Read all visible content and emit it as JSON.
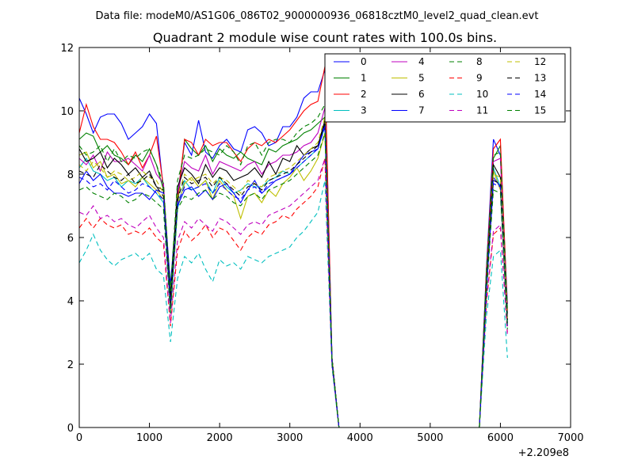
{
  "figure": {
    "suptitle": "Data file: modeM0/AS1G06_086T02_9000000936_06818cztM0_level2_quad_clean.evt"
  },
  "chart_data": {
    "type": "line",
    "title": "Quadrant 2 module wise count rates with 100.0s bins.",
    "xlabel": "",
    "ylabel": "",
    "xlim": [
      0,
      7000
    ],
    "ylim": [
      0,
      12
    ],
    "x_offset_label": "+2.209e8",
    "xticks": [
      0,
      1000,
      2000,
      3000,
      4000,
      5000,
      6000,
      7000
    ],
    "yticks": [
      0,
      2,
      4,
      6,
      8,
      10,
      12
    ],
    "grid": false,
    "legend_position": "top-right",
    "legend_columns": 4,
    "x": [
      0,
      100,
      200,
      300,
      400,
      500,
      600,
      700,
      800,
      900,
      1000,
      1100,
      1200,
      1300,
      1400,
      1500,
      1600,
      1700,
      1800,
      1900,
      2000,
      2100,
      2200,
      2300,
      2400,
      2500,
      2600,
      2700,
      2800,
      2900,
      3000,
      3100,
      3200,
      3300,
      3400,
      3500,
      3600,
      3700,
      3800,
      5700,
      5800,
      5900,
      6000,
      6100
    ],
    "series": [
      {
        "name": "0",
        "color": "#0000ff",
        "dash": "solid",
        "values": [
          10.4,
          9.9,
          9.3,
          9.8,
          9.9,
          9.9,
          9.6,
          9.1,
          9.3,
          9.5,
          9.9,
          9.6,
          7.5,
          4.5,
          7.3,
          9.0,
          8.6,
          9.7,
          8.7,
          8.5,
          8.9,
          9.1,
          8.8,
          8.7,
          9.4,
          9.5,
          9.3,
          8.9,
          9.0,
          9.5,
          9.5,
          9.8,
          10.4,
          10.6,
          10.6,
          11.3,
          2.2,
          0,
          0,
          0,
          5.0,
          9.1,
          8.6,
          3.9
        ]
      },
      {
        "name": "1",
        "color": "#008000",
        "dash": "solid",
        "values": [
          9.1,
          9.3,
          9.2,
          8.7,
          8.9,
          8.6,
          8.5,
          8.3,
          8.6,
          8.4,
          8.8,
          8.3,
          7.5,
          4.2,
          7.0,
          9.1,
          8.8,
          8.6,
          8.9,
          8.4,
          8.8,
          8.6,
          8.5,
          8.7,
          8.5,
          8.4,
          8.3,
          8.8,
          8.7,
          8.9,
          9.0,
          9.1,
          9.3,
          9.4,
          9.6,
          9.8,
          2.2,
          0,
          0,
          0,
          4.8,
          8.5,
          8.9,
          3.6
        ]
      },
      {
        "name": "2",
        "color": "#ff0000",
        "dash": "solid",
        "values": [
          9.3,
          10.2,
          9.5,
          9.1,
          9.1,
          9.0,
          8.7,
          8.3,
          8.7,
          8.2,
          8.6,
          9.2,
          7.6,
          3.9,
          7.2,
          9.1,
          9.0,
          8.6,
          9.1,
          8.9,
          9.0,
          9.0,
          8.7,
          8.4,
          8.8,
          9.0,
          8.9,
          9.1,
          9.0,
          9.2,
          9.4,
          9.7,
          10.0,
          10.2,
          10.3,
          11.4,
          2.2,
          0,
          0,
          0,
          4.9,
          8.8,
          9.1,
          3.7
        ]
      },
      {
        "name": "3",
        "color": "#00bfbf",
        "dash": "solid",
        "values": [
          8.2,
          8.5,
          8.1,
          8.0,
          7.8,
          7.9,
          7.6,
          7.8,
          7.7,
          7.9,
          7.6,
          7.4,
          7.1,
          3.6,
          6.9,
          7.8,
          7.5,
          7.6,
          7.8,
          7.4,
          7.9,
          7.6,
          7.4,
          7.5,
          7.7,
          7.6,
          7.6,
          7.8,
          7.9,
          8.1,
          8.0,
          8.2,
          8.4,
          8.6,
          8.8,
          9.5,
          2.1,
          0,
          0,
          0,
          4.4,
          8.2,
          7.6,
          3.4
        ]
      },
      {
        "name": "4",
        "color": "#bf00bf",
        "dash": "solid",
        "values": [
          8.5,
          8.3,
          8.6,
          8.1,
          8.7,
          8.4,
          8.4,
          8.5,
          8.3,
          8.1,
          8.6,
          8.0,
          7.7,
          4.0,
          7.4,
          8.4,
          8.2,
          8.1,
          8.6,
          8.0,
          8.4,
          8.3,
          8.2,
          8.1,
          8.3,
          8.4,
          8.0,
          8.3,
          8.4,
          8.6,
          8.6,
          8.7,
          8.9,
          9.0,
          9.3,
          10.1,
          2.2,
          0,
          0,
          0,
          4.7,
          8.4,
          8.5,
          3.5
        ]
      },
      {
        "name": "5",
        "color": "#bfbf00",
        "dash": "solid",
        "values": [
          8.6,
          8.7,
          8.2,
          8.4,
          7.9,
          8.0,
          7.7,
          7.8,
          7.6,
          7.9,
          7.7,
          7.5,
          7.2,
          3.7,
          7.0,
          7.7,
          7.9,
          7.6,
          7.8,
          7.2,
          7.8,
          7.5,
          7.3,
          6.6,
          7.3,
          7.4,
          7.1,
          7.5,
          7.3,
          7.7,
          7.9,
          8.2,
          7.8,
          8.1,
          8.5,
          9.3,
          2.1,
          0,
          0,
          0,
          4.4,
          8.1,
          7.5,
          3.3
        ]
      },
      {
        "name": "6",
        "color": "#000000",
        "dash": "solid",
        "values": [
          8.8,
          8.4,
          8.5,
          8.7,
          8.2,
          8.5,
          8.3,
          8.0,
          8.2,
          7.9,
          8.1,
          7.6,
          7.5,
          4.1,
          7.6,
          8.2,
          8.0,
          7.7,
          8.3,
          7.9,
          8.2,
          8.1,
          7.8,
          7.9,
          8.0,
          8.2,
          7.9,
          8.4,
          8.0,
          8.5,
          8.4,
          8.9,
          8.6,
          8.8,
          8.9,
          9.7,
          2.2,
          0,
          0,
          0,
          4.6,
          8.3,
          7.9,
          3.4
        ]
      },
      {
        "name": "7",
        "color": "#0000ff",
        "dash": "solid",
        "values": [
          7.7,
          8.1,
          7.8,
          8.0,
          7.6,
          7.4,
          7.4,
          7.3,
          7.4,
          7.4,
          7.2,
          7.5,
          7.4,
          3.8,
          7.0,
          7.5,
          7.6,
          7.3,
          7.5,
          7.2,
          7.6,
          7.7,
          7.4,
          7.1,
          7.5,
          7.8,
          7.4,
          7.6,
          7.8,
          7.9,
          8.0,
          8.3,
          8.6,
          8.7,
          8.8,
          9.6,
          2.1,
          0,
          0,
          0,
          4.3,
          7.9,
          7.6,
          3.2
        ]
      },
      {
        "name": "8",
        "color": "#008000",
        "dash": "dashed",
        "values": [
          8.9,
          8.6,
          8.7,
          8.9,
          8.4,
          8.8,
          8.4,
          8.6,
          8.5,
          8.7,
          8.8,
          8.3,
          7.7,
          4.3,
          7.8,
          8.6,
          8.5,
          8.6,
          8.8,
          8.7,
          8.6,
          8.9,
          8.7,
          8.3,
          8.9,
          9.0,
          8.6,
          9.0,
          9.1,
          9.1,
          9.0,
          9.3,
          9.5,
          9.6,
          9.8,
          10.2,
          2.2,
          0,
          0,
          0,
          4.9,
          8.6,
          8.7,
          3.7
        ]
      },
      {
        "name": "9",
        "color": "#ff0000",
        "dash": "dashed",
        "values": [
          6.3,
          6.6,
          6.3,
          6.6,
          6.4,
          6.3,
          6.4,
          6.1,
          6.2,
          6.1,
          6.3,
          6.0,
          5.8,
          3.2,
          5.6,
          6.2,
          5.9,
          6.1,
          6.4,
          6.0,
          6.3,
          6.2,
          5.9,
          5.6,
          6.0,
          6.2,
          6.1,
          6.4,
          6.5,
          6.7,
          6.6,
          6.9,
          7.1,
          7.3,
          7.6,
          8.5,
          2.0,
          0,
          0,
          0,
          3.9,
          6.1,
          6.3,
          3.0
        ]
      },
      {
        "name": "10",
        "color": "#00bfbf",
        "dash": "dashed",
        "values": [
          5.2,
          5.6,
          6.1,
          5.6,
          5.3,
          5.1,
          5.3,
          5.4,
          5.5,
          5.3,
          5.5,
          5.0,
          4.8,
          2.7,
          4.7,
          5.4,
          5.2,
          5.5,
          5.0,
          4.6,
          5.3,
          5.1,
          5.2,
          5.0,
          5.4,
          5.3,
          5.2,
          5.4,
          5.5,
          5.6,
          5.7,
          6.0,
          6.2,
          6.5,
          6.8,
          7.8,
          1.9,
          0,
          0,
          0,
          3.5,
          5.4,
          5.6,
          2.2
        ]
      },
      {
        "name": "11",
        "color": "#bf00bf",
        "dash": "dashed",
        "values": [
          6.8,
          6.7,
          7.0,
          6.6,
          6.7,
          6.5,
          6.6,
          6.4,
          6.3,
          6.5,
          6.7,
          6.3,
          6.0,
          3.3,
          5.9,
          6.5,
          6.3,
          6.6,
          6.4,
          6.2,
          6.6,
          6.5,
          6.3,
          6.1,
          6.4,
          6.5,
          6.4,
          6.7,
          6.8,
          6.9,
          7.0,
          7.2,
          7.4,
          7.6,
          7.8,
          8.5,
          2.0,
          0,
          0,
          0,
          4.0,
          6.2,
          6.4,
          2.9
        ]
      },
      {
        "name": "12",
        "color": "#bfbf00",
        "dash": "dashed",
        "values": [
          8.3,
          8.1,
          8.4,
          8.2,
          7.9,
          8.1,
          8.0,
          7.8,
          7.9,
          8.1,
          7.9,
          7.8,
          7.4,
          3.8,
          7.3,
          8.0,
          7.8,
          7.9,
          8.0,
          7.7,
          7.9,
          7.8,
          7.6,
          7.4,
          7.8,
          7.7,
          7.6,
          7.9,
          8.0,
          8.1,
          8.2,
          8.4,
          8.6,
          8.8,
          9.0,
          9.8,
          2.2,
          0,
          0,
          0,
          4.5,
          8.0,
          7.9,
          3.4
        ]
      },
      {
        "name": "13",
        "color": "#000000",
        "dash": "dashed",
        "values": [
          8.1,
          8.0,
          7.9,
          8.3,
          8.1,
          7.9,
          7.8,
          8.0,
          7.7,
          7.8,
          8.0,
          7.6,
          7.3,
          3.9,
          7.2,
          7.9,
          7.7,
          7.8,
          7.9,
          7.6,
          7.9,
          7.7,
          7.5,
          7.3,
          7.6,
          7.7,
          7.5,
          7.8,
          7.9,
          8.0,
          8.1,
          8.3,
          8.5,
          8.7,
          8.9,
          9.6,
          2.1,
          0,
          0,
          0,
          4.4,
          7.8,
          7.7,
          3.3
        ]
      },
      {
        "name": "14",
        "color": "#0000ff",
        "dash": "dashed",
        "values": [
          7.9,
          7.8,
          7.6,
          7.7,
          7.5,
          7.8,
          7.6,
          7.4,
          7.5,
          7.7,
          7.6,
          7.4,
          7.2,
          3.7,
          7.1,
          7.6,
          7.5,
          7.6,
          7.7,
          7.4,
          7.7,
          7.5,
          7.3,
          7.2,
          7.5,
          7.6,
          7.4,
          7.7,
          7.8,
          7.9,
          8.0,
          8.2,
          8.4,
          8.6,
          8.8,
          9.5,
          2.1,
          0,
          0,
          0,
          4.3,
          7.7,
          7.6,
          3.2
        ]
      },
      {
        "name": "15",
        "color": "#008000",
        "dash": "dashed",
        "values": [
          7.5,
          7.6,
          7.4,
          7.3,
          7.2,
          7.4,
          7.3,
          7.1,
          7.2,
          7.4,
          7.3,
          7.1,
          6.9,
          3.6,
          6.9,
          7.3,
          7.2,
          7.4,
          7.5,
          7.2,
          7.4,
          7.3,
          7.1,
          7.0,
          7.3,
          7.4,
          7.2,
          7.5,
          7.6,
          7.7,
          7.8,
          8.0,
          8.2,
          8.4,
          8.6,
          9.3,
          2.1,
          0,
          0,
          0,
          4.2,
          7.5,
          7.4,
          3.1
        ]
      }
    ]
  }
}
